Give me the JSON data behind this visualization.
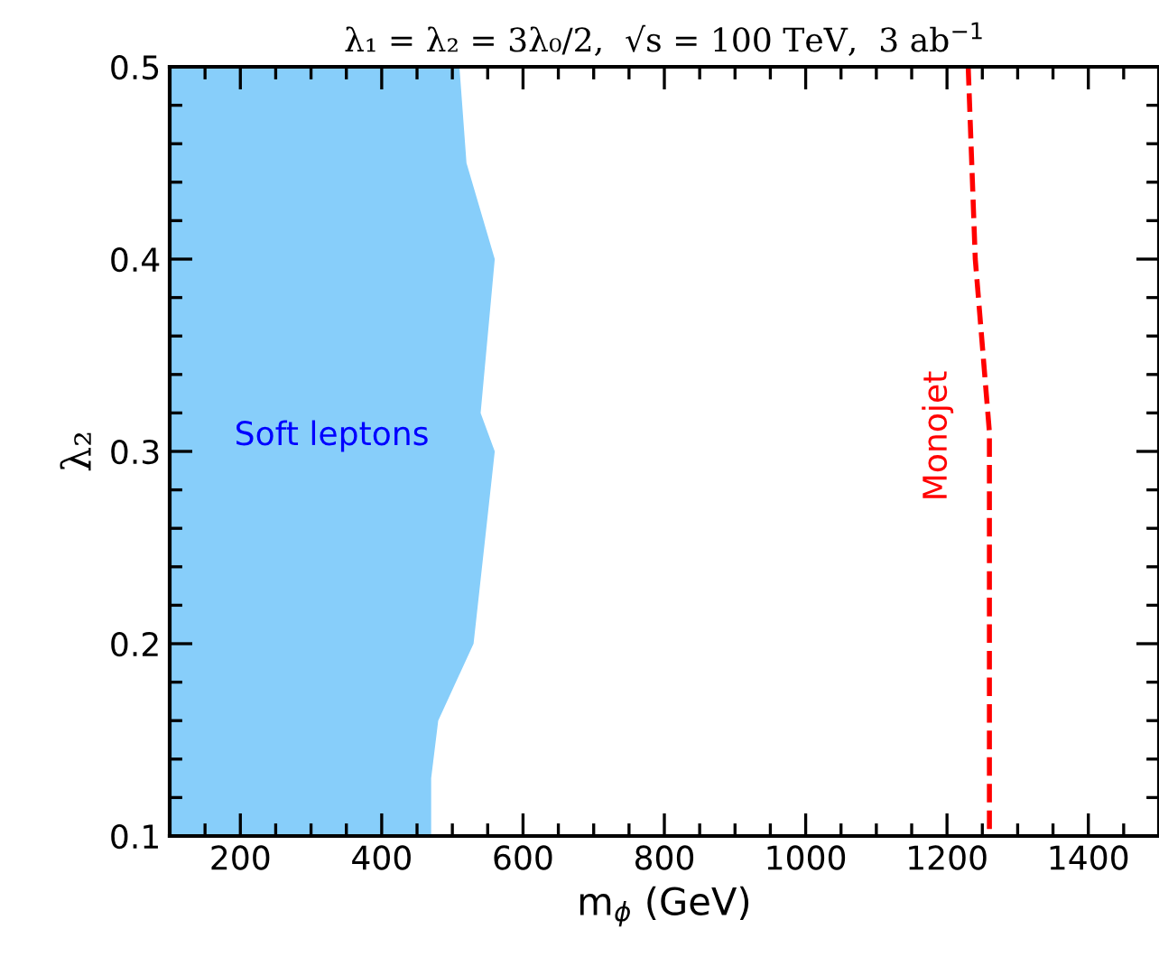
{
  "chart_data": {
    "type": "area",
    "orientation": "horizontal",
    "title": "λ₁ = λ₂ = 3λ₀/2,  √s = 100 TeV,  3 ab$^{−1}$",
    "xlabel": "m$_{ϕ}$ (GeV)",
    "ylabel": "λ₂",
    "xlim": [
      100,
      1500
    ],
    "xticks": [
      200,
      400,
      600,
      800,
      1000,
      1200,
      1400
    ],
    "ylim": [
      0.1,
      0.5
    ],
    "yticks": [
      0.1,
      0.2,
      0.3,
      0.4,
      0.5
    ],
    "grid": false,
    "series": [
      {
        "color": "#87cefa",
        "x": [
          0.5,
          0.45,
          0.4,
          0.32,
          0.3,
          0.2,
          0.16,
          0.13,
          0.1
        ],
        "values": [
          510,
          520,
          560,
          540,
          560,
          530,
          480,
          470,
          470
        ]
      },
      {
        "type": "line",
        "color": "#ff0000",
        "line_style": "dashed",
        "x": [
          0.5,
          0.4,
          0.31,
          0.1
        ],
        "values": [
          1230,
          1240,
          1260,
          1260
        ]
      }
    ],
    "annotations": [
      "Soft leptons",
      "Monojet"
    ]
  }
}
